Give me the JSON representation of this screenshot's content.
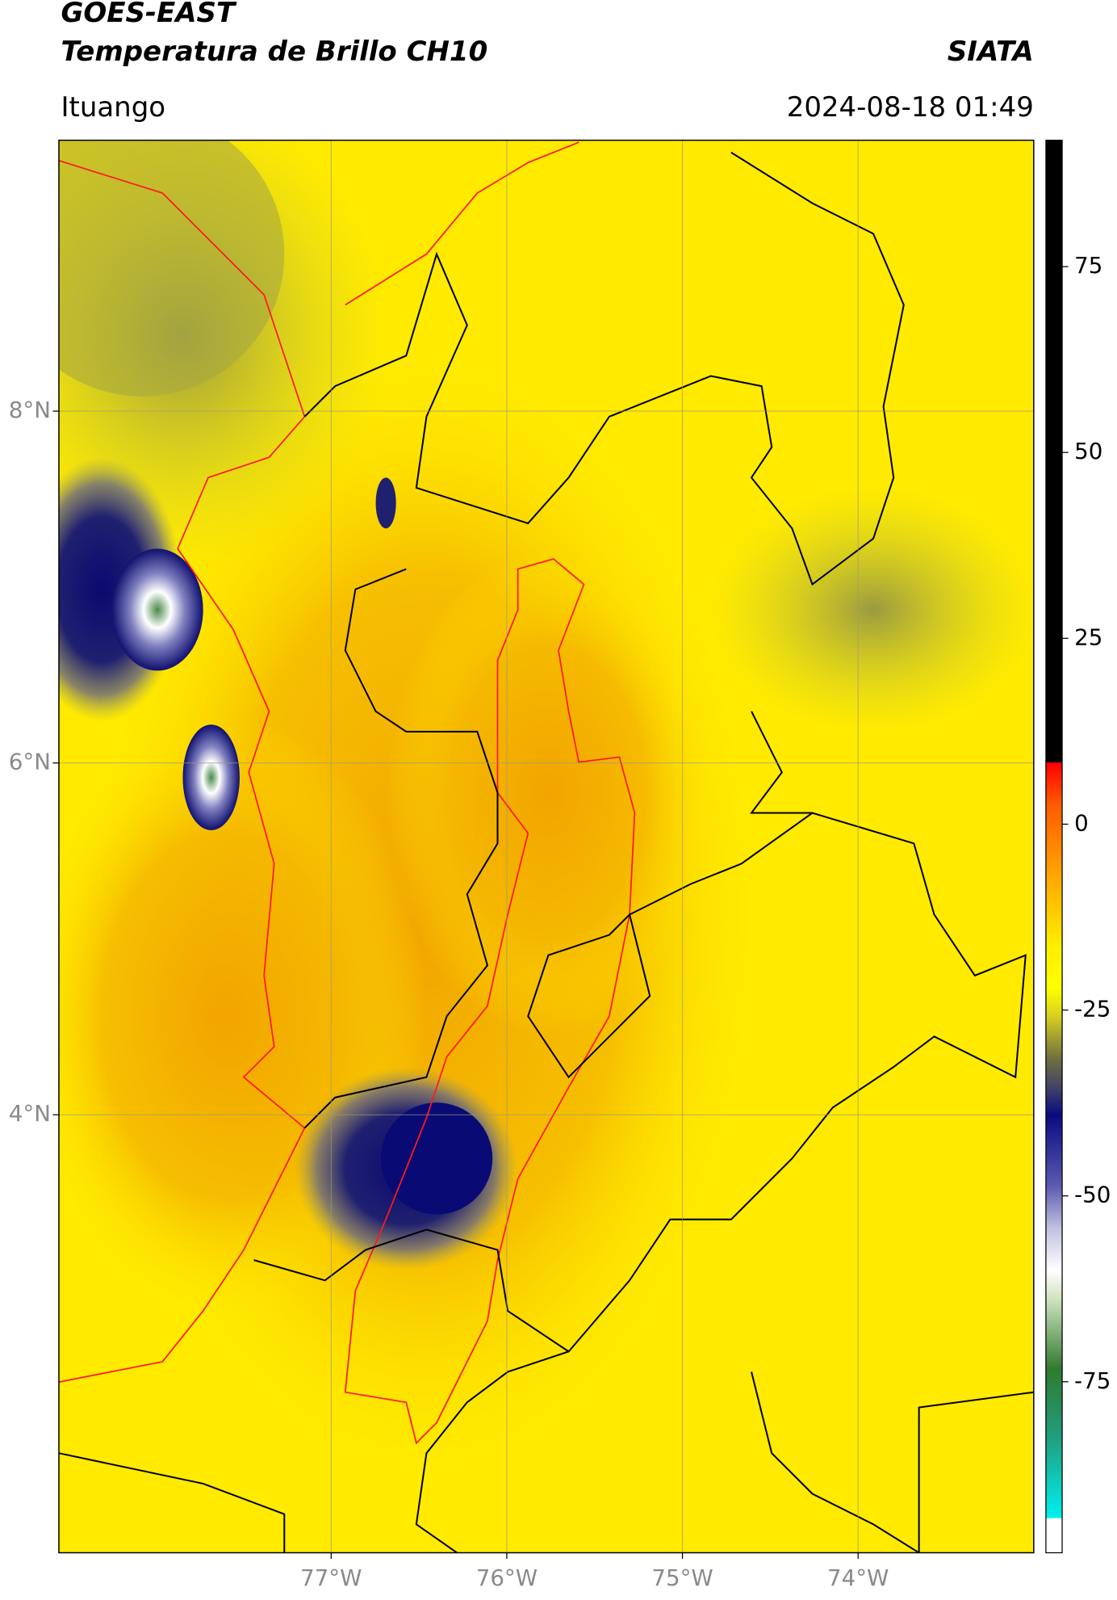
{
  "chart_data": {
    "type": "map",
    "title": "GOES-EAST",
    "subtitle": "Temperatura de Brillo CH10",
    "source": "SIATA",
    "location": "Ituango",
    "datetime": "2024-08-18 01:49",
    "xlim": [
      -78.55,
      -73.0
    ],
    "ylim": [
      1.51,
      9.54
    ],
    "xticks": [
      {
        "value": -77,
        "label": "77°W"
      },
      {
        "value": -76,
        "label": "76°W"
      },
      {
        "value": -75,
        "label": "75°W"
      },
      {
        "value": -74,
        "label": "74°W"
      }
    ],
    "yticks": [
      {
        "value": 8,
        "label": "8°N"
      },
      {
        "value": 6,
        "label": "6°N"
      },
      {
        "value": 4,
        "label": "4°N"
      }
    ],
    "grid": true,
    "colorbar": {
      "clim": [
        -98,
        92
      ],
      "ticks": [
        75,
        50,
        25,
        0,
        -25,
        -50,
        -75
      ]
    }
  }
}
